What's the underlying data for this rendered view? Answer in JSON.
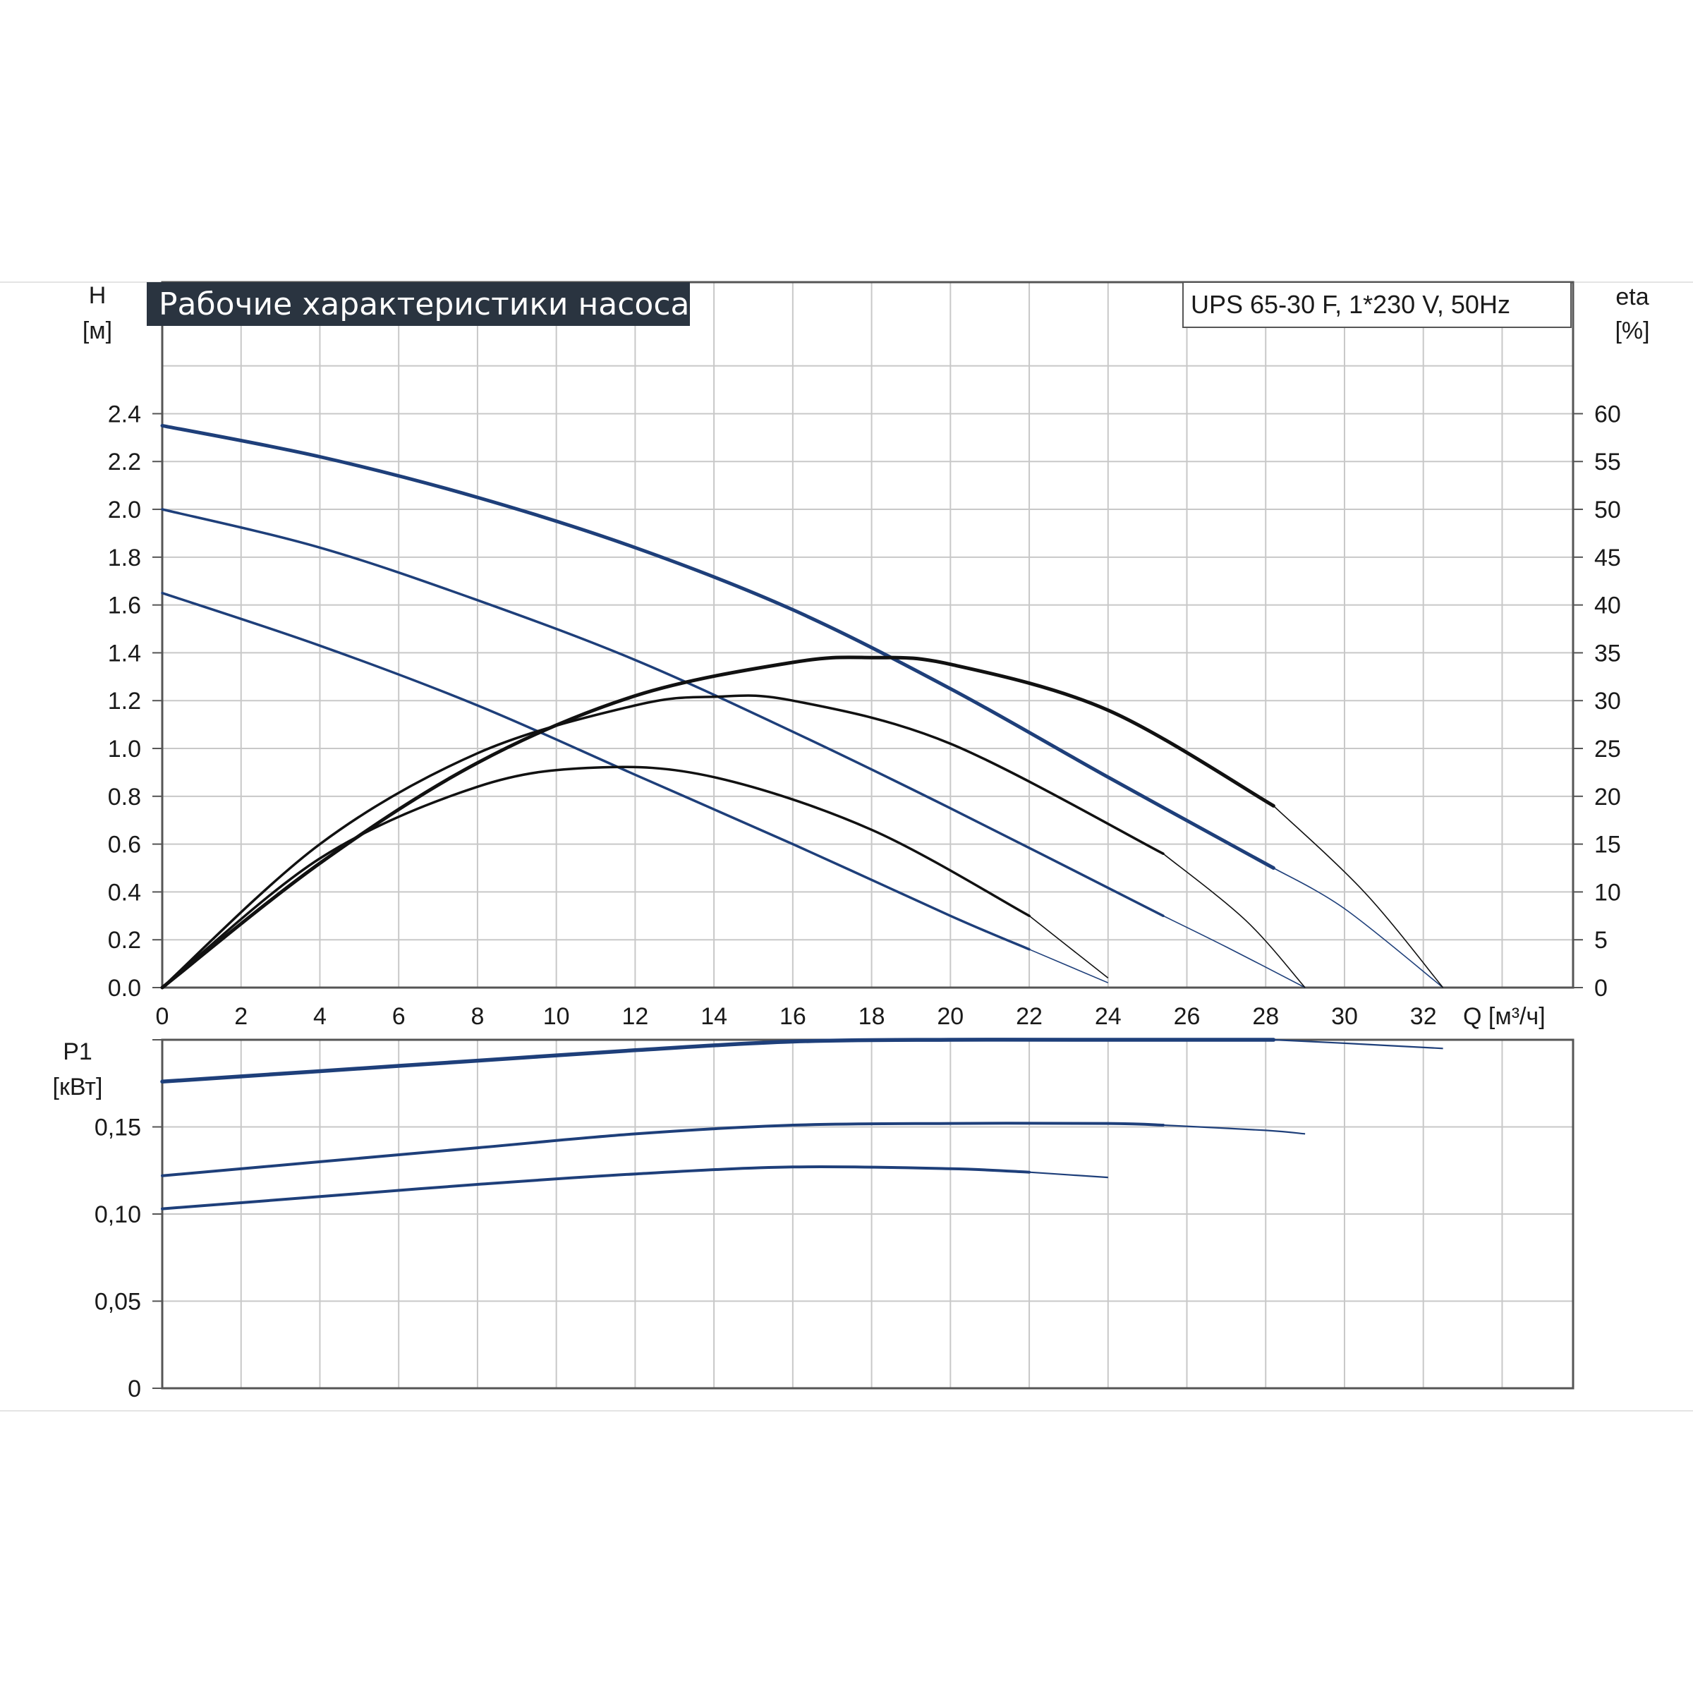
{
  "title": "Рабочие характеристики насоса",
  "model": "UPS 65-30 F, 1*230 V, 50Hz",
  "colors": {
    "head_curve": "#1e3f7a",
    "eta_curve": "#111111",
    "power_curve": "#1e3f7a",
    "grid": "#c8c8c8",
    "title_bg": "#2a3440",
    "frame": "#555555"
  },
  "chart_data": [
    {
      "type": "line",
      "name_panel": "head-efficiency",
      "xlabel": "Q [м³/ч]",
      "ylabel_left": "H",
      "ylabel_left_unit": "[м]",
      "ylabel_right": "eta",
      "ylabel_right_unit": "[%]",
      "xlim": [
        0,
        35.8
      ],
      "ylim_left": [
        0,
        2.95
      ],
      "ylim_right": [
        0,
        73.75
      ],
      "x_ticks": [
        0,
        2,
        4,
        6,
        8,
        10,
        12,
        14,
        16,
        18,
        20,
        22,
        24,
        26,
        28,
        30,
        32
      ],
      "y_ticks_left": [
        "0.0",
        "0.2",
        "0.4",
        "0.6",
        "0.8",
        "1.0",
        "1.2",
        "1.4",
        "1.6",
        "1.8",
        "2.0",
        "2.2",
        "2.4"
      ],
      "y_ticks_right": [
        "0",
        "5",
        "10",
        "15",
        "20",
        "25",
        "30",
        "35",
        "40",
        "45",
        "50",
        "55",
        "60"
      ],
      "grid": true,
      "head_series": [
        {
          "speed": 3,
          "points": [
            [
              0,
              2.35
            ],
            [
              4,
              2.22
            ],
            [
              8,
              2.05
            ],
            [
              12,
              1.84
            ],
            [
              16,
              1.58
            ],
            [
              20,
              1.25
            ],
            [
              24,
              0.88
            ],
            [
              28.2,
              0.5
            ]
          ],
          "extension": [
            [
              28.2,
              0.5
            ],
            [
              30,
              0.33
            ],
            [
              32.5,
              0.0
            ]
          ]
        },
        {
          "speed": 2,
          "points": [
            [
              0,
              2.0
            ],
            [
              4,
              1.84
            ],
            [
              8,
              1.62
            ],
            [
              12,
              1.37
            ],
            [
              16,
              1.07
            ],
            [
              20,
              0.75
            ],
            [
              25.4,
              0.3
            ]
          ],
          "extension": [
            [
              25.4,
              0.3
            ],
            [
              27,
              0.17
            ],
            [
              29,
              0.0
            ]
          ]
        },
        {
          "speed": 1,
          "points": [
            [
              0,
              1.65
            ],
            [
              4,
              1.43
            ],
            [
              8,
              1.18
            ],
            [
              12,
              0.89
            ],
            [
              16,
              0.6
            ],
            [
              20,
              0.3
            ],
            [
              22,
              0.16
            ]
          ],
          "extension": [
            [
              22,
              0.16
            ],
            [
              24,
              0.02
            ]
          ]
        }
      ],
      "eta_series": [
        {
          "speed": 3,
          "points": [
            [
              0,
              0
            ],
            [
              4,
              13
            ],
            [
              8,
              23.5
            ],
            [
              12,
              30.5
            ],
            [
              16,
              34
            ],
            [
              18,
              34.5
            ],
            [
              20,
              33.8
            ],
            [
              24,
              29
            ],
            [
              28.2,
              19
            ]
          ],
          "extension": [
            [
              28.2,
              19
            ],
            [
              30.5,
              10
            ],
            [
              32.5,
              0
            ]
          ]
        },
        {
          "speed": 2,
          "points": [
            [
              0,
              0
            ],
            [
              4,
              15
            ],
            [
              8,
              24.5
            ],
            [
              12,
              29.5
            ],
            [
              14,
              30.4
            ],
            [
              16,
              30
            ],
            [
              20,
              25.5
            ],
            [
              25.4,
              14
            ]
          ],
          "extension": [
            [
              25.4,
              14
            ],
            [
              27.5,
              7
            ],
            [
              29,
              0
            ]
          ]
        },
        {
          "speed": 1,
          "points": [
            [
              0,
              0
            ],
            [
              4,
              13.5
            ],
            [
              8,
              21
            ],
            [
              11,
              23
            ],
            [
              14,
              22
            ],
            [
              18,
              16.5
            ],
            [
              22,
              7.5
            ]
          ],
          "extension": [
            [
              22,
              7.5
            ],
            [
              24,
              1
            ]
          ]
        }
      ]
    },
    {
      "type": "line",
      "name_panel": "power",
      "xlabel": "",
      "ylabel": "P1",
      "ylabel_unit": "[кВт]",
      "xlim": [
        0,
        35.8
      ],
      "ylim": [
        0,
        0.2
      ],
      "y_ticks": [
        "0",
        "0,05",
        "0,10",
        "0,15"
      ],
      "grid": true,
      "power_series": [
        {
          "speed": 3,
          "points": [
            [
              0,
              0.176
            ],
            [
              4,
              0.182
            ],
            [
              8,
              0.188
            ],
            [
              12,
              0.194
            ],
            [
              16,
              0.199
            ],
            [
              20,
              0.2
            ],
            [
              24,
              0.2
            ],
            [
              28.2,
              0.2
            ]
          ],
          "extension": [
            [
              28.2,
              0.2
            ],
            [
              30,
              0.198
            ],
            [
              32.5,
              0.195
            ]
          ]
        },
        {
          "speed": 2,
          "points": [
            [
              0,
              0.122
            ],
            [
              4,
              0.13
            ],
            [
              8,
              0.138
            ],
            [
              12,
              0.146
            ],
            [
              16,
              0.151
            ],
            [
              20,
              0.152
            ],
            [
              24,
              0.152
            ],
            [
              25.4,
              0.151
            ]
          ],
          "extension": [
            [
              25.4,
              0.151
            ],
            [
              28,
              0.148
            ],
            [
              29,
              0.146
            ]
          ]
        },
        {
          "speed": 1,
          "points": [
            [
              0,
              0.103
            ],
            [
              4,
              0.11
            ],
            [
              8,
              0.117
            ],
            [
              12,
              0.123
            ],
            [
              16,
              0.127
            ],
            [
              20,
              0.126
            ],
            [
              22,
              0.124
            ]
          ],
          "extension": [
            [
              22,
              0.124
            ],
            [
              24,
              0.121
            ]
          ]
        }
      ]
    }
  ]
}
